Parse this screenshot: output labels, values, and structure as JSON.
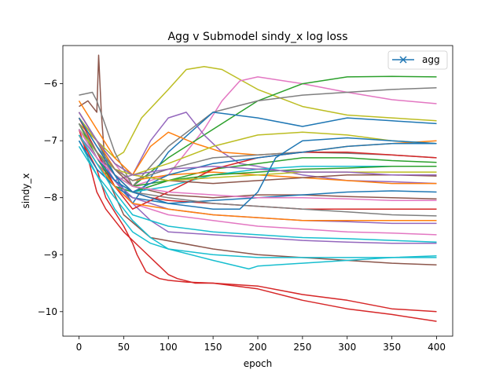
{
  "chart_data": {
    "type": "line",
    "title": "Agg v Submodel sindy_x log loss",
    "xlabel": "epoch",
    "ylabel": "sindy_x",
    "xlim": [
      -18,
      418
    ],
    "ylim": [
      -10.43,
      -5.33
    ],
    "xticks": [
      0,
      50,
      100,
      150,
      200,
      250,
      300,
      350,
      400
    ],
    "yticks": [
      -10,
      -9,
      -8,
      -7,
      -6
    ],
    "grid": false,
    "legend": {
      "position": "top-right",
      "entries": [
        {
          "label": "agg",
          "color": "#1f77b4",
          "marker": "x"
        }
      ]
    },
    "colors": [
      "#1f77b4",
      "#ff7f0e",
      "#2ca02c",
      "#d62728",
      "#9467bd",
      "#8c564b",
      "#e377c2",
      "#7f7f7f",
      "#bcbd22",
      "#17becf"
    ],
    "series": [
      {
        "color": "#d62728",
        "x": [
          0,
          10,
          20,
          30,
          50,
          70,
          90,
          100,
          110,
          130,
          150,
          200,
          250,
          300,
          350,
          400
        ],
        "y": [
          -6.8,
          -7.3,
          -7.9,
          -8.2,
          -8.6,
          -8.9,
          -9.2,
          -9.35,
          -9.42,
          -9.5,
          -9.5,
          -9.55,
          -9.7,
          -9.8,
          -9.95,
          -10.0
        ]
      },
      {
        "color": "#d62728",
        "x": [
          0,
          20,
          30,
          50,
          60,
          65,
          75,
          90,
          100,
          120,
          150,
          200,
          250,
          300,
          350,
          400
        ],
        "y": [
          -6.9,
          -7.5,
          -8.0,
          -8.5,
          -8.8,
          -9.0,
          -9.3,
          -9.42,
          -9.45,
          -9.48,
          -9.5,
          -9.6,
          -9.8,
          -9.95,
          -10.05,
          -10.17
        ]
      },
      {
        "color": "#8c564b",
        "x": [
          0,
          10,
          20,
          22,
          25,
          30,
          50,
          80,
          150,
          200,
          250,
          300,
          350,
          400
        ],
        "y": [
          -6.4,
          -6.3,
          -6.5,
          -5.5,
          -6.5,
          -7.6,
          -8.3,
          -8.7,
          -8.9,
          -9.0,
          -9.05,
          -9.1,
          -9.15,
          -9.18
        ]
      },
      {
        "color": "#bcbd22",
        "x": [
          0,
          20,
          40,
          50,
          70,
          100,
          120,
          140,
          160,
          200,
          250,
          300,
          350,
          400
        ],
        "y": [
          -6.7,
          -7.0,
          -7.3,
          -7.2,
          -6.6,
          -6.1,
          -5.75,
          -5.7,
          -5.75,
          -6.1,
          -6.4,
          -6.55,
          -6.6,
          -6.65
        ]
      },
      {
        "color": "#e377c2",
        "x": [
          0,
          20,
          40,
          60,
          100,
          140,
          160,
          180,
          200,
          250,
          300,
          350,
          400
        ],
        "y": [
          -6.6,
          -7.0,
          -7.4,
          -7.8,
          -7.6,
          -6.8,
          -6.3,
          -5.95,
          -5.88,
          -6.0,
          -6.15,
          -6.28,
          -6.35
        ]
      },
      {
        "color": "#2ca02c",
        "x": [
          0,
          20,
          40,
          60,
          100,
          150,
          200,
          250,
          300,
          350,
          400
        ],
        "y": [
          -6.8,
          -7.2,
          -7.6,
          -7.8,
          -7.3,
          -6.8,
          -6.3,
          -6.0,
          -5.88,
          -5.87,
          -5.88
        ]
      },
      {
        "color": "#7f7f7f",
        "x": [
          0,
          15,
          20,
          40,
          60,
          100,
          150,
          200,
          250,
          300,
          350,
          400
        ],
        "y": [
          -6.2,
          -6.15,
          -6.3,
          -7.2,
          -7.8,
          -7.1,
          -6.5,
          -6.3,
          -6.2,
          -6.15,
          -6.1,
          -6.07
        ]
      },
      {
        "color": "#1f77b4",
        "x": [
          0,
          20,
          40,
          60,
          100,
          150,
          200,
          250,
          300,
          350,
          400
        ],
        "y": [
          -6.5,
          -7.0,
          -7.6,
          -8.1,
          -7.2,
          -6.5,
          -6.6,
          -6.75,
          -6.6,
          -6.65,
          -6.7
        ]
      },
      {
        "color": "#9467bd",
        "x": [
          0,
          20,
          40,
          60,
          80,
          100,
          120,
          140,
          160,
          180,
          200,
          250,
          300,
          350,
          400
        ],
        "y": [
          -6.9,
          -7.4,
          -7.7,
          -7.6,
          -7.0,
          -6.6,
          -6.5,
          -6.9,
          -7.2,
          -7.4,
          -7.45,
          -7.6,
          -7.7,
          -7.72,
          -7.75
        ]
      },
      {
        "color": "#ff7f0e",
        "x": [
          0,
          20,
          40,
          60,
          80,
          100,
          130,
          160,
          200,
          250,
          300,
          350,
          400
        ],
        "y": [
          -6.3,
          -6.8,
          -7.3,
          -7.6,
          -7.1,
          -6.85,
          -7.05,
          -7.2,
          -7.25,
          -7.2,
          -7.1,
          -7.05,
          -7.0
        ]
      },
      {
        "color": "#17becf",
        "x": [
          0,
          20,
          40,
          60,
          80,
          100,
          150,
          200,
          250,
          300,
          350,
          400
        ],
        "y": [
          -7.0,
          -7.6,
          -8.2,
          -8.6,
          -8.8,
          -8.9,
          -9.0,
          -9.05,
          -9.05,
          -9.05,
          -9.05,
          -9.05
        ]
      },
      {
        "color": "#17becf",
        "x": [
          0,
          20,
          40,
          60,
          80,
          100,
          150,
          190,
          200,
          250,
          300,
          350,
          400
        ],
        "y": [
          -7.1,
          -7.6,
          -8.0,
          -8.4,
          -8.7,
          -8.9,
          -9.1,
          -9.25,
          -9.2,
          -9.15,
          -9.1,
          -9.05,
          -9.02
        ]
      },
      {
        "color": "#9467bd",
        "x": [
          0,
          20,
          40,
          60,
          80,
          100,
          150,
          200,
          250,
          300,
          350,
          400
        ],
        "y": [
          -6.9,
          -7.3,
          -7.7,
          -8.1,
          -8.4,
          -8.6,
          -8.65,
          -8.7,
          -8.75,
          -8.78,
          -8.8,
          -8.8
        ]
      },
      {
        "color": "#d62728",
        "x": [
          0,
          20,
          40,
          60,
          80,
          100,
          150,
          200,
          250,
          300,
          350,
          400
        ],
        "y": [
          -6.7,
          -7.2,
          -7.6,
          -7.9,
          -8.0,
          -8.05,
          -8.1,
          -8.15,
          -8.2,
          -8.2,
          -8.2,
          -8.2
        ]
      },
      {
        "color": "#8c564b",
        "x": [
          0,
          20,
          40,
          60,
          100,
          150,
          200,
          250,
          300,
          350,
          400
        ],
        "y": [
          -6.6,
          -7.0,
          -7.5,
          -7.8,
          -7.95,
          -8.0,
          -7.95,
          -7.95,
          -7.98,
          -8.0,
          -8.02
        ]
      },
      {
        "color": "#2ca02c",
        "x": [
          0,
          20,
          40,
          60,
          100,
          150,
          200,
          250,
          300,
          350,
          400
        ],
        "y": [
          -6.7,
          -7.3,
          -7.8,
          -7.9,
          -7.7,
          -7.5,
          -7.4,
          -7.3,
          -7.3,
          -7.35,
          -7.38
        ]
      },
      {
        "color": "#bcbd22",
        "x": [
          0,
          20,
          40,
          60,
          100,
          150,
          200,
          250,
          300,
          350,
          400
        ],
        "y": [
          -6.8,
          -7.2,
          -7.5,
          -7.6,
          -7.4,
          -7.1,
          -6.9,
          -6.85,
          -6.9,
          -7.0,
          -7.05
        ]
      },
      {
        "color": "#e377c2",
        "x": [
          0,
          20,
          40,
          60,
          100,
          150,
          200,
          250,
          300,
          350,
          400
        ],
        "y": [
          -6.9,
          -7.4,
          -7.8,
          -8.1,
          -8.3,
          -8.4,
          -8.5,
          -8.55,
          -8.6,
          -8.62,
          -8.65
        ]
      },
      {
        "color": "#1f77b4",
        "x": [
          0,
          20,
          40,
          60,
          100,
          150,
          200,
          250,
          300,
          350,
          400
        ],
        "y": [
          -7.0,
          -7.5,
          -7.8,
          -8.0,
          -8.1,
          -8.05,
          -8.0,
          -7.95,
          -7.9,
          -7.88,
          -7.9
        ]
      },
      {
        "color": "#ff7f0e",
        "x": [
          0,
          20,
          40,
          60,
          100,
          150,
          200,
          250,
          300,
          350,
          400
        ],
        "y": [
          -6.5,
          -7.0,
          -7.5,
          -7.7,
          -7.6,
          -7.55,
          -7.6,
          -7.65,
          -7.7,
          -7.75,
          -7.75
        ]
      },
      {
        "color": "#7f7f7f",
        "x": [
          0,
          20,
          40,
          60,
          100,
          150,
          200,
          250,
          300,
          350,
          400
        ],
        "y": [
          -6.6,
          -7.1,
          -7.5,
          -7.7,
          -7.5,
          -7.3,
          -7.25,
          -7.2,
          -7.22,
          -7.25,
          -7.3
        ]
      },
      {
        "color": "#17becf",
        "x": [
          0,
          20,
          40,
          60,
          100,
          150,
          200,
          250,
          300,
          350,
          400
        ],
        "y": [
          -6.8,
          -7.3,
          -7.7,
          -7.9,
          -7.8,
          -7.6,
          -7.5,
          -7.45,
          -7.45,
          -7.45,
          -7.45
        ]
      },
      {
        "color": "#9467bd",
        "x": [
          0,
          20,
          40,
          60,
          100,
          150,
          200,
          250,
          300,
          350,
          400
        ],
        "y": [
          -6.7,
          -7.2,
          -7.7,
          -8.0,
          -8.2,
          -8.3,
          -8.35,
          -8.4,
          -8.42,
          -8.45,
          -8.45
        ]
      },
      {
        "color": "#d62728",
        "x": [
          0,
          20,
          40,
          60,
          100,
          150,
          200,
          250,
          300,
          350,
          400
        ],
        "y": [
          -6.6,
          -7.2,
          -7.8,
          -8.2,
          -7.9,
          -7.5,
          -7.3,
          -7.2,
          -7.2,
          -7.25,
          -7.3
        ]
      },
      {
        "color": "#2ca02c",
        "x": [
          0,
          20,
          40,
          60,
          100,
          150,
          200,
          250,
          300,
          350,
          400
        ],
        "y": [
          -6.7,
          -7.2,
          -7.6,
          -7.8,
          -7.7,
          -7.6,
          -7.55,
          -7.5,
          -7.48,
          -7.45,
          -7.45
        ]
      },
      {
        "color": "#1f77b4",
        "x": [
          0,
          20,
          40,
          60,
          100,
          150,
          200,
          250,
          300,
          350,
          400
        ],
        "y": [
          -6.8,
          -7.3,
          -7.7,
          -7.9,
          -7.6,
          -7.4,
          -7.3,
          -7.2,
          -7.1,
          -7.05,
          -7.05
        ]
      },
      {
        "color": "#8c564b",
        "x": [
          0,
          20,
          40,
          60,
          100,
          150,
          200,
          250,
          300,
          350,
          400
        ],
        "y": [
          -6.5,
          -7.0,
          -7.4,
          -7.6,
          -7.7,
          -7.75,
          -7.7,
          -7.65,
          -7.6,
          -7.6,
          -7.62
        ]
      },
      {
        "color": "#bcbd22",
        "x": [
          0,
          20,
          40,
          60,
          100,
          150,
          200,
          250,
          300,
          350,
          400
        ],
        "y": [
          -6.6,
          -7.0,
          -7.4,
          -7.6,
          -7.7,
          -7.65,
          -7.6,
          -7.55,
          -7.55,
          -7.55,
          -7.55
        ]
      },
      {
        "color": "#ff7f0e",
        "x": [
          0,
          20,
          40,
          60,
          100,
          150,
          200,
          250,
          300,
          350,
          400
        ],
        "y": [
          -6.9,
          -7.4,
          -7.8,
          -8.1,
          -8.2,
          -8.3,
          -8.35,
          -8.4,
          -8.4,
          -8.4,
          -8.4
        ]
      },
      {
        "color": "#e377c2",
        "x": [
          0,
          20,
          40,
          60,
          100,
          150,
          200,
          250,
          300,
          350,
          400
        ],
        "y": [
          -6.8,
          -7.3,
          -7.6,
          -7.8,
          -7.9,
          -7.95,
          -8.0,
          -8.0,
          -8.02,
          -8.05,
          -8.05
        ]
      },
      {
        "color": "#7f7f7f",
        "x": [
          0,
          20,
          40,
          60,
          100,
          150,
          200,
          250,
          300,
          350,
          400
        ],
        "y": [
          -6.7,
          -7.2,
          -7.6,
          -7.9,
          -8.0,
          -8.1,
          -8.15,
          -8.2,
          -8.25,
          -8.3,
          -8.32
        ]
      },
      {
        "color": "#17becf",
        "x": [
          0,
          20,
          40,
          60,
          100,
          150,
          200,
          250,
          300,
          350,
          400
        ],
        "y": [
          -6.9,
          -7.4,
          -7.9,
          -8.3,
          -8.5,
          -8.6,
          -8.65,
          -8.7,
          -8.72,
          -8.75,
          -8.78
        ]
      },
      {
        "color": "#9467bd",
        "x": [
          0,
          20,
          40,
          60,
          100,
          150,
          200,
          250,
          300,
          350,
          400
        ],
        "y": [
          -6.5,
          -7.0,
          -7.4,
          -7.6,
          -7.5,
          -7.45,
          -7.5,
          -7.55,
          -7.55,
          -7.6,
          -7.6
        ]
      },
      {
        "color": "#1f77b4",
        "x": [
          0,
          20,
          40,
          60,
          100,
          150,
          180,
          200,
          220,
          250,
          300,
          350,
          400
        ],
        "y": [
          -6.6,
          -7.1,
          -7.6,
          -7.9,
          -8.1,
          -8.2,
          -8.2,
          -7.9,
          -7.3,
          -7.0,
          -6.95,
          -7.0,
          -7.05
        ]
      }
    ]
  }
}
